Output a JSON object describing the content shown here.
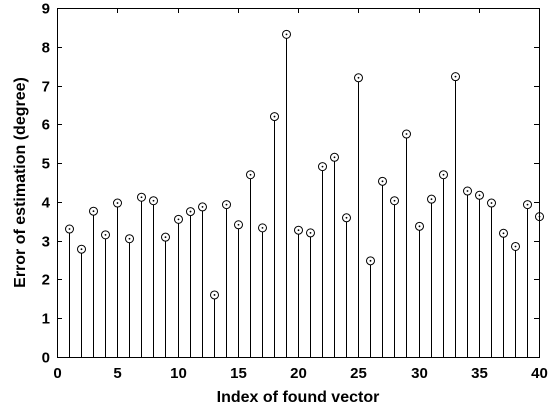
{
  "chart_data": {
    "type": "stem",
    "xlabel": "Index of found vector",
    "ylabel": "Error of estimation (degree)",
    "xlim": [
      0,
      40
    ],
    "ylim": [
      0,
      9
    ],
    "xticks": [
      0,
      5,
      10,
      15,
      20,
      25,
      30,
      35,
      40
    ],
    "yticks": [
      0,
      1,
      2,
      3,
      4,
      5,
      6,
      7,
      8,
      9
    ],
    "grid": false,
    "marker": "circle",
    "line_color": "#000000",
    "x": [
      1,
      2,
      3,
      4,
      5,
      6,
      7,
      8,
      9,
      10,
      11,
      12,
      13,
      14,
      15,
      16,
      17,
      18,
      19,
      20,
      21,
      22,
      23,
      24,
      25,
      26,
      27,
      28,
      29,
      30,
      31,
      32,
      33,
      34,
      35,
      36,
      37,
      38,
      39,
      40
    ],
    "values": [
      3.3,
      2.78,
      3.76,
      3.15,
      3.97,
      3.05,
      4.12,
      4.03,
      3.09,
      3.55,
      3.75,
      3.87,
      1.6,
      3.93,
      3.41,
      4.7,
      3.33,
      6.2,
      8.32,
      3.27,
      3.2,
      4.91,
      5.15,
      3.59,
      7.2,
      2.48,
      4.53,
      4.03,
      5.75,
      3.37,
      4.07,
      4.7,
      7.23,
      4.28,
      4.17,
      3.97,
      3.19,
      2.85,
      3.93,
      3.62
    ]
  }
}
